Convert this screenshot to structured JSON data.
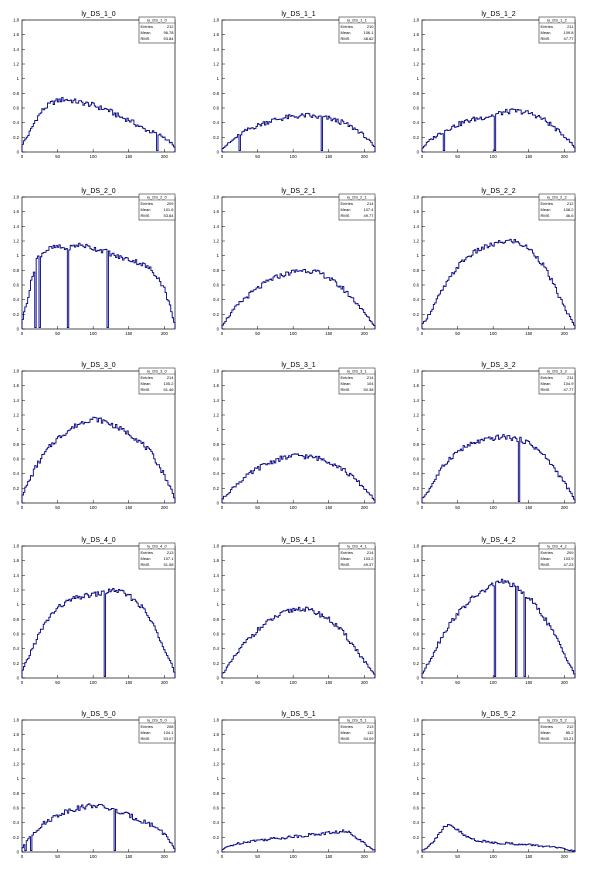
{
  "colors": {
    "line": "#000080",
    "frame": "#000000",
    "background": "#ffffff"
  },
  "chart_data": [
    {
      "type": "line",
      "title": "ly_DS_1_0",
      "xlim": [
        0,
        215
      ],
      "ylim": [
        0,
        1.8
      ],
      "x_ticks": [
        0,
        50,
        100,
        150,
        200
      ],
      "y_ticks": [
        0,
        0.2,
        0.4,
        0.6,
        0.8,
        1,
        1.2,
        1.4,
        1.6,
        1.8
      ],
      "stats": {
        "name": "ly_DS_1_0",
        "entries": "212",
        "mean": "96.78",
        "rms": "53.84"
      },
      "x": [
        0,
        10,
        20,
        30,
        40,
        50,
        60,
        70,
        80,
        90,
        100,
        110,
        120,
        130,
        140,
        150,
        160,
        170,
        180,
        190,
        200,
        210,
        215
      ],
      "values": [
        0.1,
        0.25,
        0.45,
        0.58,
        0.66,
        0.7,
        0.72,
        0.7,
        0.68,
        0.66,
        0.64,
        0.6,
        0.58,
        0.52,
        0.47,
        0.44,
        0.38,
        0.32,
        0.28,
        0.25,
        0.2,
        0.12,
        0.05
      ],
      "dips": [
        [
          190,
          0.02
        ]
      ]
    },
    {
      "type": "line",
      "title": "ly_DS_1_1",
      "xlim": [
        0,
        215
      ],
      "ylim": [
        0,
        1.8
      ],
      "x_ticks": [
        0,
        50,
        100,
        150,
        200
      ],
      "y_ticks": [
        0,
        0.2,
        0.4,
        0.6,
        0.8,
        1,
        1.2,
        1.4,
        1.6,
        1.8
      ],
      "stats": {
        "name": "ly_DS_1_1",
        "entries": "210",
        "mean": "106.1",
        "rms": "48.62"
      },
      "x": [
        0,
        10,
        20,
        30,
        40,
        50,
        60,
        70,
        80,
        90,
        100,
        110,
        120,
        130,
        140,
        150,
        160,
        170,
        180,
        190,
        200,
        210,
        215
      ],
      "values": [
        0.05,
        0.12,
        0.2,
        0.27,
        0.32,
        0.36,
        0.4,
        0.43,
        0.45,
        0.47,
        0.48,
        0.49,
        0.5,
        0.48,
        0.47,
        0.46,
        0.43,
        0.4,
        0.35,
        0.3,
        0.22,
        0.12,
        0.05
      ],
      "dips": [
        [
          25,
          0.02
        ],
        [
          140,
          0.02
        ]
      ]
    },
    {
      "type": "line",
      "title": "ly_DS_1_2",
      "xlim": [
        0,
        215
      ],
      "ylim": [
        0,
        1.8
      ],
      "x_ticks": [
        0,
        50,
        100,
        150,
        200
      ],
      "y_ticks": [
        0,
        0.2,
        0.4,
        0.6,
        0.8,
        1,
        1.2,
        1.4,
        1.6,
        1.8
      ],
      "stats": {
        "name": "ly_DS_1_2",
        "entries": "211",
        "mean": "109.8",
        "rms": "47.77"
      },
      "x": [
        0,
        10,
        20,
        30,
        40,
        50,
        60,
        70,
        80,
        90,
        100,
        110,
        120,
        130,
        140,
        150,
        160,
        170,
        180,
        190,
        200,
        210,
        215
      ],
      "values": [
        0.05,
        0.15,
        0.22,
        0.28,
        0.33,
        0.37,
        0.41,
        0.44,
        0.46,
        0.48,
        0.5,
        0.53,
        0.55,
        0.56,
        0.55,
        0.53,
        0.5,
        0.45,
        0.38,
        0.3,
        0.22,
        0.12,
        0.05
      ],
      "dips": [
        [
          30,
          0.02
        ],
        [
          103,
          0.02
        ]
      ]
    },
    {
      "type": "line",
      "title": "ly_DS_2_0",
      "xlim": [
        0,
        215
      ],
      "ylim": [
        0,
        1.8
      ],
      "x_ticks": [
        0,
        50,
        100,
        150,
        200
      ],
      "y_ticks": [
        0,
        0.2,
        0.4,
        0.6,
        0.8,
        1,
        1.2,
        1.4,
        1.6,
        1.8
      ],
      "stats": {
        "name": "ly_DS_2_0",
        "entries": "209",
        "mean": "101.6",
        "rms": "53.84"
      },
      "x": [
        0,
        10,
        20,
        30,
        40,
        50,
        60,
        70,
        80,
        90,
        100,
        110,
        120,
        130,
        140,
        150,
        160,
        170,
        180,
        190,
        200,
        210,
        215
      ],
      "values": [
        0.1,
        0.5,
        0.95,
        1.05,
        1.1,
        1.12,
        1.1,
        1.12,
        1.15,
        1.13,
        1.1,
        1.08,
        1.05,
        1.0,
        0.97,
        0.95,
        0.92,
        0.88,
        0.82,
        0.72,
        0.55,
        0.25,
        0.05
      ],
      "dips": [
        [
          18,
          0.02
        ],
        [
          25,
          0.02
        ],
        [
          65,
          0.02
        ],
        [
          120,
          0.02
        ]
      ]
    },
    {
      "type": "line",
      "title": "ly_DS_2_1",
      "xlim": [
        0,
        215
      ],
      "ylim": [
        0,
        1.8
      ],
      "x_ticks": [
        0,
        50,
        100,
        150,
        200
      ],
      "y_ticks": [
        0,
        0.2,
        0.4,
        0.6,
        0.8,
        1,
        1.2,
        1.4,
        1.6,
        1.8
      ],
      "stats": {
        "name": "ly_DS_2_1",
        "entries": "214",
        "mean": "107.4",
        "rms": "49.77"
      },
      "x": [
        0,
        10,
        20,
        30,
        40,
        50,
        60,
        70,
        80,
        90,
        100,
        110,
        120,
        130,
        140,
        150,
        160,
        170,
        180,
        190,
        200,
        210,
        215
      ],
      "values": [
        0.05,
        0.18,
        0.3,
        0.4,
        0.48,
        0.55,
        0.62,
        0.68,
        0.72,
        0.75,
        0.78,
        0.8,
        0.8,
        0.78,
        0.75,
        0.7,
        0.62,
        0.55,
        0.45,
        0.35,
        0.22,
        0.1,
        0.03
      ],
      "dips": []
    },
    {
      "type": "line",
      "title": "ly_DS_2_2",
      "xlim": [
        0,
        215
      ],
      "ylim": [
        0,
        1.8
      ],
      "x_ticks": [
        0,
        50,
        100,
        150,
        200
      ],
      "y_ticks": [
        0,
        0.2,
        0.4,
        0.6,
        0.8,
        1,
        1.2,
        1.4,
        1.6,
        1.8
      ],
      "stats": {
        "name": "ly_DS_2_2",
        "entries": "212",
        "mean": "108.2",
        "rms": "46.6"
      },
      "x": [
        0,
        10,
        20,
        30,
        40,
        50,
        60,
        70,
        80,
        90,
        100,
        110,
        120,
        130,
        140,
        150,
        160,
        170,
        180,
        190,
        200,
        210,
        215
      ],
      "values": [
        0.05,
        0.2,
        0.38,
        0.55,
        0.7,
        0.85,
        0.95,
        1.02,
        1.08,
        1.12,
        1.15,
        1.18,
        1.2,
        1.2,
        1.15,
        1.1,
        1.0,
        0.88,
        0.7,
        0.5,
        0.3,
        0.12,
        0.03
      ],
      "dips": []
    },
    {
      "type": "line",
      "title": "ly_DS_3_0",
      "xlim": [
        0,
        215
      ],
      "ylim": [
        0,
        1.8
      ],
      "x_ticks": [
        0,
        50,
        100,
        150,
        200
      ],
      "y_ticks": [
        0,
        0.2,
        0.4,
        0.6,
        0.8,
        1,
        1.2,
        1.4,
        1.6,
        1.8
      ],
      "stats": {
        "name": "ly_DS_3_0",
        "entries": "214",
        "mean": "105.2",
        "rms": "51.46"
      },
      "x": [
        0,
        10,
        20,
        30,
        40,
        50,
        60,
        70,
        80,
        90,
        100,
        110,
        120,
        130,
        140,
        150,
        160,
        170,
        180,
        190,
        200,
        210,
        215
      ],
      "values": [
        0.1,
        0.3,
        0.5,
        0.65,
        0.78,
        0.88,
        0.95,
        1.02,
        1.08,
        1.12,
        1.15,
        1.13,
        1.1,
        1.05,
        1.0,
        0.95,
        0.88,
        0.8,
        0.7,
        0.55,
        0.38,
        0.18,
        0.05
      ],
      "dips": []
    },
    {
      "type": "line",
      "title": "ly_DS_3_1",
      "xlim": [
        0,
        215
      ],
      "ylim": [
        0,
        1.8
      ],
      "x_ticks": [
        0,
        50,
        100,
        150,
        200
      ],
      "y_ticks": [
        0,
        0.2,
        0.4,
        0.6,
        0.8,
        1,
        1.2,
        1.4,
        1.6,
        1.8
      ],
      "stats": {
        "name": "ly_DS_3_1",
        "entries": "214",
        "mean": "104",
        "rms": "50.38"
      },
      "x": [
        0,
        10,
        20,
        30,
        40,
        50,
        60,
        70,
        80,
        90,
        100,
        110,
        120,
        130,
        140,
        150,
        160,
        170,
        180,
        190,
        200,
        210,
        215
      ],
      "values": [
        0.05,
        0.15,
        0.25,
        0.33,
        0.4,
        0.47,
        0.52,
        0.56,
        0.6,
        0.62,
        0.64,
        0.65,
        0.63,
        0.62,
        0.6,
        0.57,
        0.52,
        0.46,
        0.38,
        0.3,
        0.2,
        0.1,
        0.03
      ],
      "dips": []
    },
    {
      "type": "line",
      "title": "ly_DS_3_2",
      "xlim": [
        0,
        215
      ],
      "ylim": [
        0,
        1.8
      ],
      "x_ticks": [
        0,
        50,
        100,
        150,
        200
      ],
      "y_ticks": [
        0,
        0.2,
        0.4,
        0.6,
        0.8,
        1,
        1.2,
        1.4,
        1.6,
        1.8
      ],
      "stats": {
        "name": "ly_DS_3_2",
        "entries": "211",
        "mean": "104.9",
        "rms": "47.77"
      },
      "x": [
        0,
        10,
        20,
        30,
        40,
        50,
        60,
        70,
        80,
        90,
        100,
        110,
        120,
        130,
        140,
        150,
        160,
        170,
        180,
        190,
        200,
        210,
        215
      ],
      "values": [
        0.05,
        0.18,
        0.35,
        0.5,
        0.62,
        0.7,
        0.76,
        0.8,
        0.84,
        0.86,
        0.88,
        0.9,
        0.9,
        0.88,
        0.86,
        0.82,
        0.75,
        0.66,
        0.55,
        0.42,
        0.28,
        0.12,
        0.03
      ],
      "dips": [
        [
          137,
          0.02
        ]
      ]
    },
    {
      "type": "line",
      "title": "ly_DS_4_0",
      "xlim": [
        0,
        215
      ],
      "ylim": [
        0,
        1.8
      ],
      "x_ticks": [
        0,
        50,
        100,
        150,
        200
      ],
      "y_ticks": [
        0,
        0.2,
        0.4,
        0.6,
        0.8,
        1,
        1.2,
        1.4,
        1.6,
        1.8
      ],
      "stats": {
        "name": "ly_DS_4_0",
        "entries": "213",
        "mean": "107.1",
        "rms": "51.58"
      },
      "x": [
        0,
        10,
        20,
        30,
        40,
        50,
        60,
        70,
        80,
        90,
        100,
        110,
        120,
        130,
        140,
        150,
        160,
        170,
        180,
        190,
        200,
        210,
        215
      ],
      "values": [
        0.08,
        0.3,
        0.52,
        0.7,
        0.85,
        0.95,
        1.02,
        1.07,
        1.1,
        1.12,
        1.14,
        1.15,
        1.18,
        1.2,
        1.17,
        1.12,
        1.05,
        0.95,
        0.8,
        0.62,
        0.42,
        0.2,
        0.05
      ],
      "dips": [
        [
          117,
          0.02
        ]
      ]
    },
    {
      "type": "line",
      "title": "ly_DS_4_1",
      "xlim": [
        0,
        215
      ],
      "ylim": [
        0,
        1.8
      ],
      "x_ticks": [
        0,
        50,
        100,
        150,
        200
      ],
      "y_ticks": [
        0,
        0.2,
        0.4,
        0.6,
        0.8,
        1,
        1.2,
        1.4,
        1.6,
        1.8
      ],
      "stats": {
        "name": "ly_DS_4_1",
        "entries": "214",
        "mean": "103.2",
        "rms": "49.37"
      },
      "x": [
        0,
        10,
        20,
        30,
        40,
        50,
        60,
        70,
        80,
        90,
        100,
        110,
        120,
        130,
        140,
        150,
        160,
        170,
        180,
        190,
        200,
        210,
        215
      ],
      "values": [
        0.05,
        0.18,
        0.32,
        0.45,
        0.56,
        0.65,
        0.73,
        0.8,
        0.85,
        0.9,
        0.93,
        0.95,
        0.93,
        0.9,
        0.86,
        0.8,
        0.72,
        0.62,
        0.5,
        0.37,
        0.23,
        0.1,
        0.03
      ],
      "dips": []
    },
    {
      "type": "line",
      "title": "ly_DS_4_2",
      "xlim": [
        0,
        215
      ],
      "ylim": [
        0,
        1.8
      ],
      "x_ticks": [
        0,
        50,
        100,
        150,
        200
      ],
      "y_ticks": [
        0,
        0.2,
        0.4,
        0.6,
        0.8,
        1,
        1.2,
        1.4,
        1.6,
        1.8
      ],
      "stats": {
        "name": "ly_DS_4_2",
        "entries": "209",
        "mean": "103.9",
        "rms": "47.23"
      },
      "x": [
        0,
        10,
        20,
        30,
        40,
        50,
        60,
        70,
        80,
        90,
        100,
        110,
        120,
        130,
        140,
        150,
        160,
        170,
        180,
        190,
        200,
        210,
        215
      ],
      "values": [
        0.05,
        0.22,
        0.42,
        0.6,
        0.75,
        0.88,
        0.98,
        1.08,
        1.15,
        1.2,
        1.28,
        1.32,
        1.3,
        1.25,
        1.18,
        1.1,
        0.98,
        0.85,
        0.7,
        0.52,
        0.33,
        0.15,
        0.03
      ],
      "dips": [
        [
          103,
          0.02
        ],
        [
          133,
          0.02
        ],
        [
          145,
          0.02
        ]
      ]
    },
    {
      "type": "line",
      "title": "ly_DS_5_0",
      "xlim": [
        0,
        215
      ],
      "ylim": [
        0,
        1.8
      ],
      "x_ticks": [
        0,
        50,
        100,
        150,
        200
      ],
      "y_ticks": [
        0,
        0.2,
        0.4,
        0.6,
        0.8,
        1,
        1.2,
        1.4,
        1.6,
        1.8
      ],
      "stats": {
        "name": "ly_DS_5_0",
        "entries": "208",
        "mean": "104.1",
        "rms": "53.07"
      },
      "x": [
        0,
        10,
        20,
        30,
        40,
        50,
        60,
        70,
        80,
        90,
        100,
        110,
        120,
        130,
        140,
        150,
        160,
        170,
        180,
        190,
        200,
        210,
        215
      ],
      "values": [
        0.05,
        0.2,
        0.3,
        0.38,
        0.45,
        0.5,
        0.55,
        0.58,
        0.6,
        0.62,
        0.64,
        0.62,
        0.6,
        0.57,
        0.53,
        0.5,
        0.46,
        0.42,
        0.38,
        0.33,
        0.25,
        0.12,
        0.03
      ],
      "dips": [
        [
          5,
          0.02
        ],
        [
          12,
          0.02
        ],
        [
          130,
          0.02
        ]
      ]
    },
    {
      "type": "line",
      "title": "ly_DS_5_1",
      "xlim": [
        0,
        215
      ],
      "ylim": [
        0,
        1.8
      ],
      "x_ticks": [
        0,
        50,
        100,
        150,
        200
      ],
      "y_ticks": [
        0,
        0.2,
        0.4,
        0.6,
        0.8,
        1,
        1.2,
        1.4,
        1.6,
        1.8
      ],
      "stats": {
        "name": "ly_DS_5_1",
        "entries": "213",
        "mean": "112",
        "rms": "54.09"
      },
      "x": [
        0,
        10,
        20,
        30,
        40,
        50,
        60,
        70,
        80,
        90,
        100,
        110,
        120,
        130,
        140,
        150,
        160,
        170,
        180,
        190,
        200,
        210,
        215
      ],
      "values": [
        0.03,
        0.08,
        0.11,
        0.13,
        0.15,
        0.16,
        0.17,
        0.18,
        0.19,
        0.2,
        0.21,
        0.22,
        0.23,
        0.24,
        0.25,
        0.26,
        0.27,
        0.28,
        0.26,
        0.2,
        0.12,
        0.05,
        0.02
      ],
      "dips": []
    },
    {
      "type": "line",
      "title": "ly_DS_5_2",
      "xlim": [
        0,
        215
      ],
      "ylim": [
        0,
        1.8
      ],
      "x_ticks": [
        0,
        50,
        100,
        150,
        200
      ],
      "y_ticks": [
        0,
        0.2,
        0.4,
        0.6,
        0.8,
        1,
        1.2,
        1.4,
        1.6,
        1.8
      ],
      "stats": {
        "name": "ly_DS_5_2",
        "entries": "212",
        "mean": "85.2",
        "rms": "53.21"
      },
      "x": [
        0,
        10,
        20,
        30,
        40,
        50,
        60,
        70,
        80,
        90,
        100,
        110,
        120,
        130,
        140,
        150,
        160,
        170,
        180,
        190,
        200,
        210,
        215
      ],
      "values": [
        0.02,
        0.08,
        0.2,
        0.32,
        0.36,
        0.3,
        0.22,
        0.18,
        0.15,
        0.14,
        0.13,
        0.12,
        0.12,
        0.11,
        0.1,
        0.1,
        0.09,
        0.08,
        0.07,
        0.06,
        0.04,
        0.02,
        0.01
      ],
      "dips": []
    }
  ],
  "stats_labels": {
    "entries": "Entries",
    "mean": "Mean",
    "rms": "RMS"
  }
}
